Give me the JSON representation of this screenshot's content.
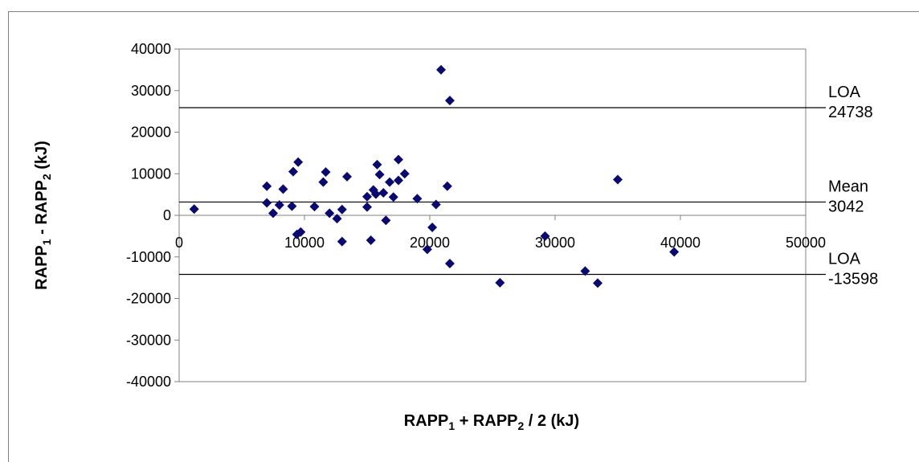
{
  "chart_data": {
    "type": "scatter",
    "xlabel": {
      "base": "RAPP",
      "sub1": "1",
      "mid": " + RAPP",
      "sub2": "2",
      "tail": " / 2 (kJ)"
    },
    "ylabel": {
      "base": "RAPP",
      "sub1": "1",
      "mid": " - RAPP",
      "sub2": "2",
      "tail": " (kJ)"
    },
    "xlim": [
      0,
      50000
    ],
    "ylim": [
      -40000,
      40000
    ],
    "x_ticks": [
      0,
      10000,
      20000,
      30000,
      40000,
      50000
    ],
    "y_ticks": [
      40000,
      30000,
      20000,
      10000,
      0,
      -10000,
      -20000,
      -30000,
      -40000
    ],
    "grid": false,
    "marker": "diamond",
    "marker_color": "#0a0a6e",
    "series": [
      {
        "points": [
          [
            1200,
            1500
          ],
          [
            7000,
            7000
          ],
          [
            7000,
            3000
          ],
          [
            7500,
            500
          ],
          [
            8000,
            2500
          ],
          [
            8300,
            6300
          ],
          [
            9000,
            2200
          ],
          [
            9100,
            10500
          ],
          [
            9500,
            12800
          ],
          [
            9400,
            -4600
          ],
          [
            9700,
            -4000
          ],
          [
            10800,
            2100
          ],
          [
            11500,
            8000
          ],
          [
            11700,
            10400
          ],
          [
            12000,
            500
          ],
          [
            12600,
            -800
          ],
          [
            13000,
            1400
          ],
          [
            13000,
            -6300
          ],
          [
            13400,
            9300
          ],
          [
            15000,
            2000
          ],
          [
            15000,
            4500
          ],
          [
            15300,
            -6000
          ],
          [
            15500,
            6100
          ],
          [
            15700,
            5100
          ],
          [
            15800,
            12200
          ],
          [
            16000,
            9800
          ],
          [
            16300,
            5400
          ],
          [
            16500,
            -1200
          ],
          [
            16800,
            8000
          ],
          [
            17100,
            4400
          ],
          [
            17500,
            13400
          ],
          [
            17500,
            8400
          ],
          [
            18000,
            10000
          ],
          [
            19000,
            4000
          ],
          [
            19800,
            -8200
          ],
          [
            20200,
            -2900
          ],
          [
            20500,
            2600
          ],
          [
            20900,
            35000
          ],
          [
            21400,
            7000
          ],
          [
            21600,
            -11600
          ],
          [
            21600,
            27600
          ],
          [
            25600,
            -16200
          ],
          [
            29200,
            -5000
          ],
          [
            32400,
            -13400
          ],
          [
            33400,
            -16300
          ],
          [
            35000,
            8600
          ],
          [
            39500,
            -8800
          ]
        ]
      }
    ],
    "reference_lines": [
      {
        "y": 25900,
        "label1": "LOA",
        "label2": "24738"
      },
      {
        "y": 3200,
        "label1": "Mean",
        "label2": "3042"
      },
      {
        "y": -14200,
        "label1": "LOA",
        "label2": "-13598"
      }
    ]
  }
}
